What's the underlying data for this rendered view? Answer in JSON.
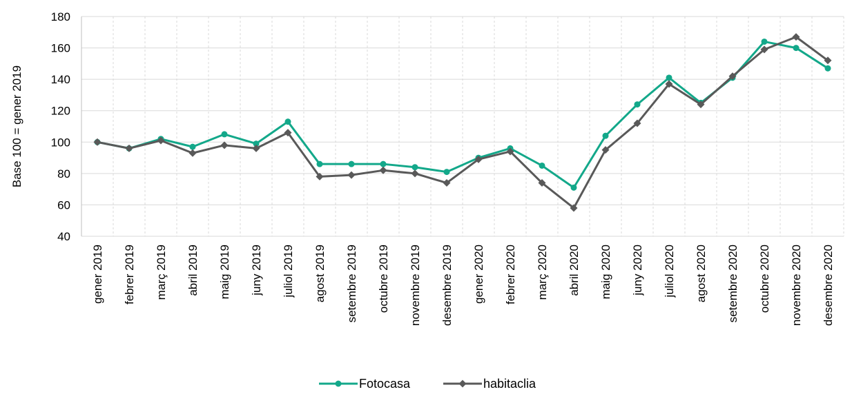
{
  "chart_data": {
    "type": "line",
    "title": "",
    "xlabel": "",
    "ylabel": "Base 100 = gener 2019",
    "ylim": [
      40,
      180
    ],
    "yticks": [
      40,
      60,
      80,
      100,
      120,
      140,
      160,
      180
    ],
    "grid": "horizontal",
    "legend": "bottom",
    "categories": [
      "gener 2019",
      "febrer 2019",
      "març 2019",
      "abril 2019",
      "maig 2019",
      "juny 2019",
      "juliol 2019",
      "agost 2019",
      "setembre 2019",
      "octubre 2019",
      "novembre 2019",
      "desembre 2019",
      "gener 2020",
      "febrer 2020",
      "març 2020",
      "abril 2020",
      "maig 2020",
      "juny 2020",
      "juliol 2020",
      "agost 2020",
      "setembre 2020",
      "octubre 2020",
      "novembre 2020",
      "desembre 2020"
    ],
    "series": [
      {
        "name": "Fotocasa",
        "color": "#13A88A",
        "marker": "circle",
        "values": [
          100,
          96,
          102,
          97,
          105,
          99,
          113,
          86,
          86,
          86,
          84,
          81,
          90,
          96,
          85,
          71,
          104,
          124,
          141,
          125,
          141,
          164,
          160,
          147
        ]
      },
      {
        "name": "habitaclia",
        "color": "#595959",
        "marker": "diamond",
        "values": [
          100,
          96,
          101,
          93,
          98,
          96,
          106,
          78,
          79,
          82,
          80,
          74,
          89,
          94,
          74,
          58,
          95,
          112,
          137,
          124,
          142,
          159,
          167,
          152
        ]
      }
    ]
  }
}
